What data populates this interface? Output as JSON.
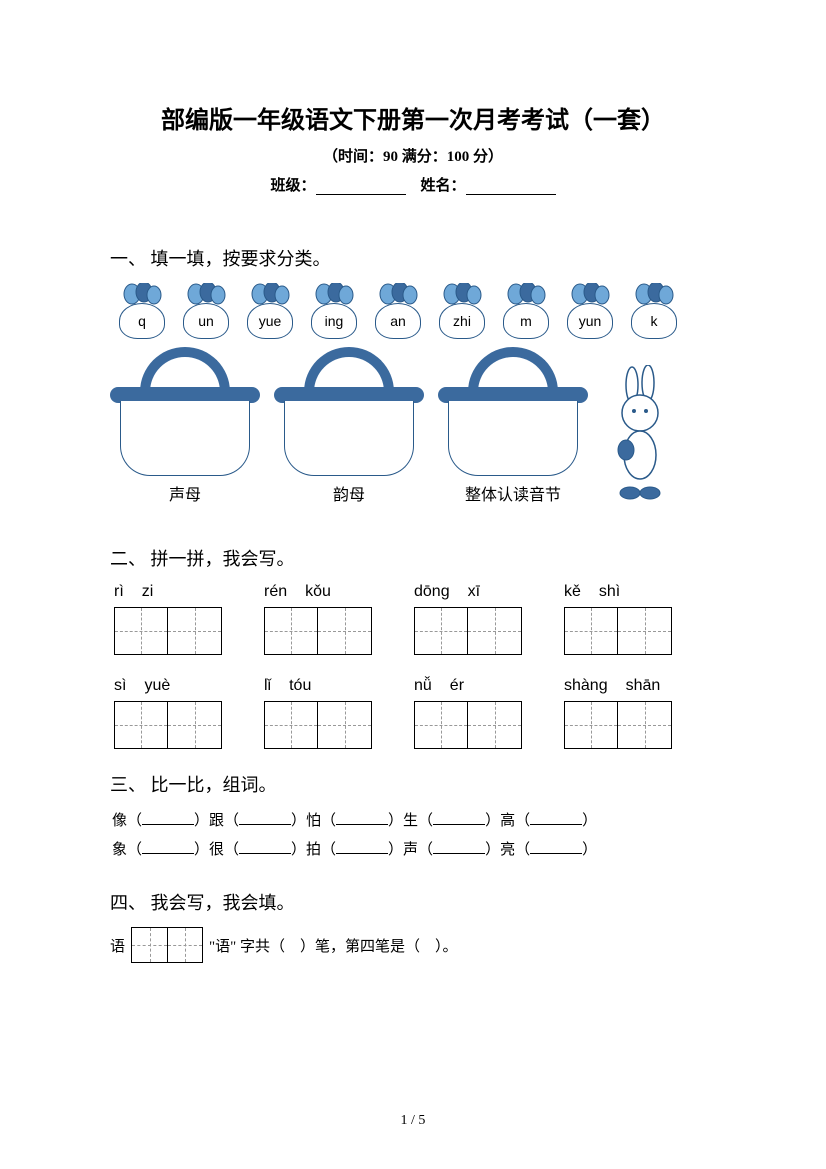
{
  "title": "部编版一年级语文下册第一次月考考试（一套）",
  "subtitle": "（时间：90   满分：100 分）",
  "info_class": "班级：",
  "info_name": "姓名：",
  "sections": {
    "s1": {
      "title": "一、 填一填，按要求分类。",
      "radishes": [
        "q",
        "un",
        "yue",
        "ing",
        "an",
        "zhi",
        "m",
        "yun",
        "k"
      ],
      "baskets": [
        "声母",
        "韵母",
        "整体认读音节"
      ]
    },
    "s2": {
      "title": "二、 拼一拼，我会写。",
      "row1": [
        [
          "rì",
          "zi"
        ],
        [
          "rén",
          "kǒu"
        ],
        [
          "dōng",
          "xī"
        ],
        [
          "kě",
          "shì"
        ]
      ],
      "row2": [
        [
          "sì",
          "yuè"
        ],
        [
          "lǐ",
          "tóu"
        ],
        [
          "nǚ",
          "ér"
        ],
        [
          "shàng",
          "shān"
        ]
      ]
    },
    "s3": {
      "title": "三、 比一比，组词。",
      "row1": [
        "像",
        "跟",
        "怕",
        "生",
        "高"
      ],
      "row2": [
        "象",
        "很",
        "拍",
        "声",
        "亮"
      ]
    },
    "s4": {
      "title": "四、 我会写，我会填。",
      "char": "语",
      "text_a": "\"语\" 字共（",
      "text_b": "）笔，第四笔是（",
      "text_c": "）。"
    }
  },
  "page_num": "1 / 5",
  "colors": {
    "accent": "#3b6a9e",
    "border": "#2a5a8a"
  }
}
